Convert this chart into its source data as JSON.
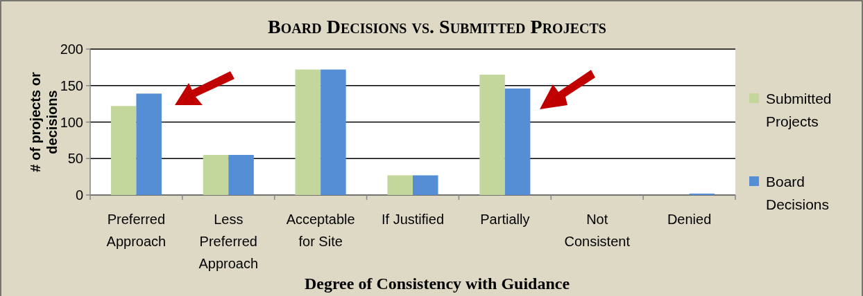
{
  "chart_data": {
    "type": "bar",
    "title": "Board Decisions vs. Submitted Projects",
    "xlabel": "Degree of Consistency with Guidance",
    "ylabel": "# of projects or decisions",
    "categories": [
      "Preferred Approach",
      "Less Preferred Approach",
      "Acceptable for Site",
      "If Justified",
      "Partially",
      "Not Consistent",
      "Denied"
    ],
    "series": [
      {
        "name": "Submitted Projects",
        "color": "#c3d69b",
        "values": [
          122,
          55,
          172,
          27,
          165,
          0,
          0
        ]
      },
      {
        "name": "Board Decisions",
        "color": "#558ed5",
        "values": [
          139,
          55,
          172,
          27,
          146,
          0,
          2
        ]
      }
    ],
    "ylim": [
      0,
      200
    ],
    "yticks": [
      0,
      50,
      100,
      150,
      200
    ],
    "grid": "y",
    "legend": "right"
  }
}
